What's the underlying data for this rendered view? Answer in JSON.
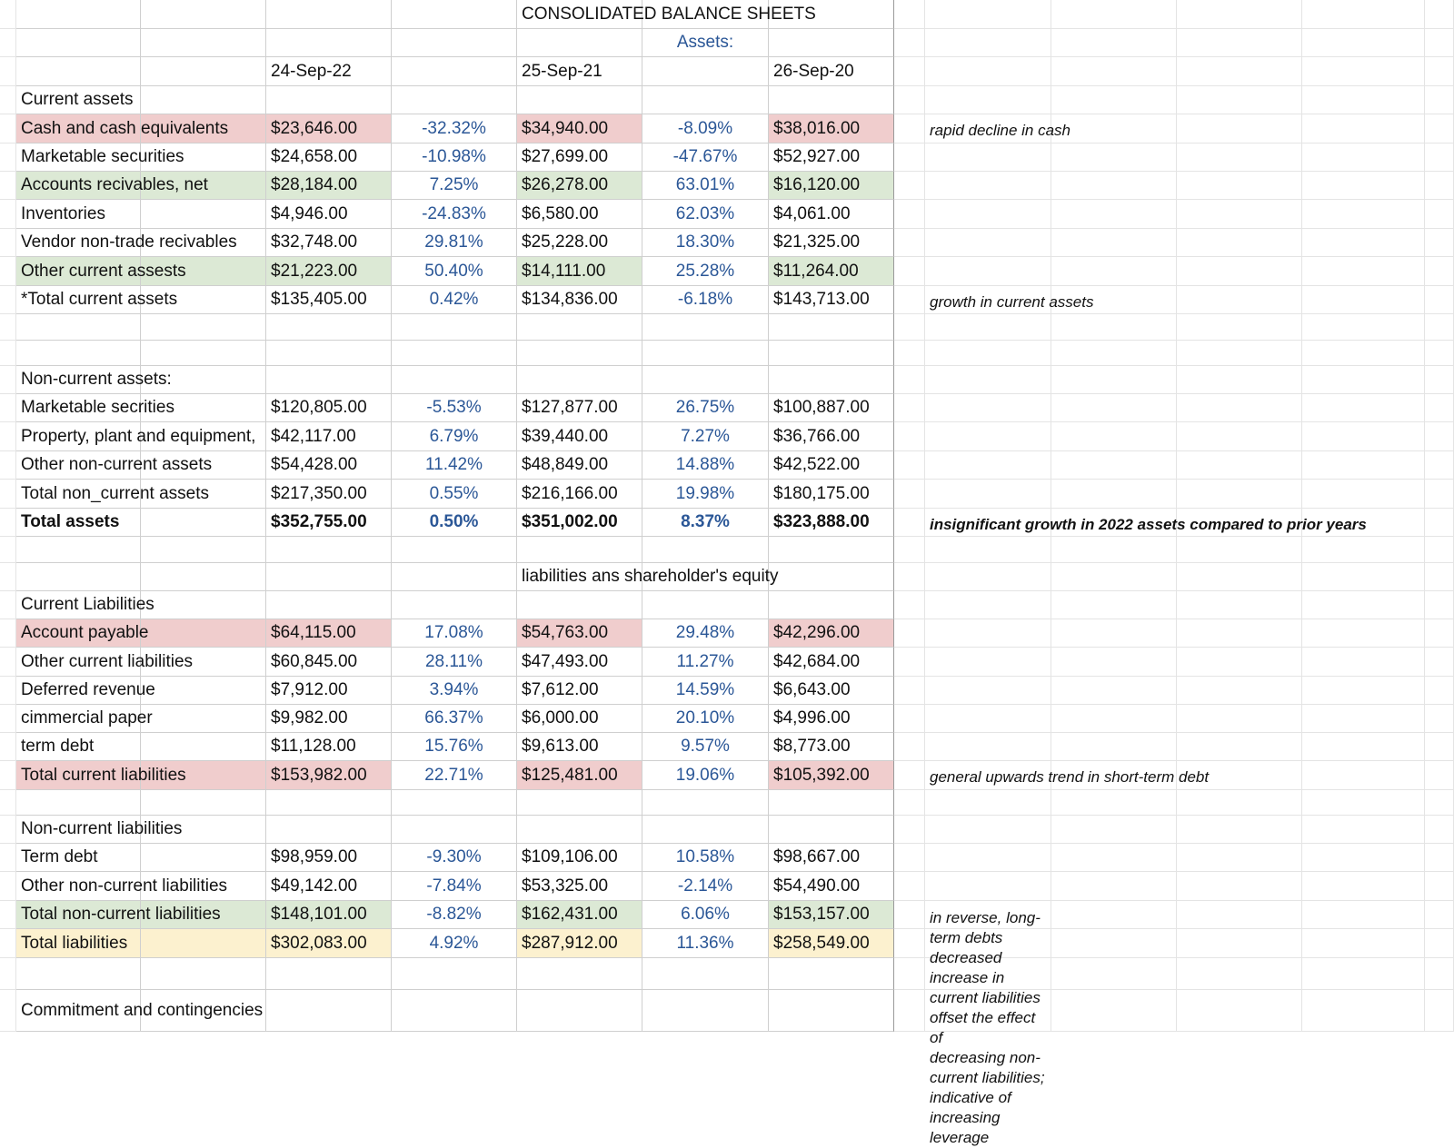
{
  "sheet": {
    "fills": {
      "pink": "#f0cdcd",
      "green": "#dce9d5",
      "yellow": "#fcf1cf",
      "percent_text": "#2b5797"
    },
    "rows": [
      {
        "cells": {
          "E": "CONSOLIDATED BALANCE SHEETS"
        }
      },
      {
        "cells": {
          "F": "Assets:"
        }
      },
      {
        "cells": {
          "C": "24-Sep-22",
          "E": "25-Sep-21",
          "G": "26-Sep-20"
        }
      },
      {
        "cells": {
          "A": "Current assets"
        }
      },
      {
        "cells": {
          "A": "Cash and cash equivalents",
          "C": "$23,646.00",
          "D": "-32.32%",
          "E": "$34,940.00",
          "F": "-8.09%",
          "G": "$38,016.00",
          "I": "rapid decline in cash"
        },
        "fill": "pink"
      },
      {
        "cells": {
          "A": "Marketable securities",
          "C": "$24,658.00",
          "D": "-10.98%",
          "E": "$27,699.00",
          "F": "-47.67%",
          "G": "$52,927.00"
        }
      },
      {
        "cells": {
          "A": "Accounts recivables, net",
          "C": "$28,184.00",
          "D": "7.25%",
          "E": "$26,278.00",
          "F": "63.01%",
          "G": "$16,120.00"
        },
        "fill": "green"
      },
      {
        "cells": {
          "A": "Inventories",
          "C": "$4,946.00",
          "D": "-24.83%",
          "E": "$6,580.00",
          "F": "62.03%",
          "G": "$4,061.00"
        }
      },
      {
        "cells": {
          "A": "Vendor non-trade recivables",
          "C": "$32,748.00",
          "D": "29.81%",
          "E": "$25,228.00",
          "F": "18.30%",
          "G": "$21,325.00"
        }
      },
      {
        "cells": {
          "A": "Other current assests",
          "C": "$21,223.00",
          "D": "50.40%",
          "E": "$14,111.00",
          "F": "25.28%",
          "G": "$11,264.00"
        },
        "fill": "green"
      },
      {
        "cells": {
          "A": "*Total current assets",
          "C": "$135,405.00",
          "D": "0.42%",
          "E": "$134,836.00",
          "F": "-6.18%",
          "G": "$143,713.00",
          "I": "growth in current assets"
        }
      },
      {
        "cells": {}
      },
      {
        "cells": {}
      },
      {
        "cells": {
          "A": "Non-current assets:"
        }
      },
      {
        "cells": {
          "A": "Marketable secrities",
          "C": "$120,805.00",
          "D": "-5.53%",
          "E": "$127,877.00",
          "F": "26.75%",
          "G": "$100,887.00"
        }
      },
      {
        "cells": {
          "A": "Property, plant and equipment,",
          "C": "$42,117.00",
          "D": "6.79%",
          "E": "$39,440.00",
          "F": "7.27%",
          "G": "$36,766.00"
        }
      },
      {
        "cells": {
          "A": "Other non-current assets",
          "C": "$54,428.00",
          "D": "11.42%",
          "E": "$48,849.00",
          "F": "14.88%",
          "G": "$42,522.00"
        }
      },
      {
        "cells": {
          "A": "Total non_current assets",
          "C": "$217,350.00",
          "D": "0.55%",
          "E": "$216,166.00",
          "F": "19.98%",
          "G": "$180,175.00"
        }
      },
      {
        "cells": {
          "A": "Total assets",
          "C": "$352,755.00",
          "D": "0.50%",
          "E": "$351,002.00",
          "F": "8.37%",
          "G": "$323,888.00",
          "I": "insignificant growth in 2022 assets compared to prior years"
        },
        "bold": true
      },
      {
        "cells": {}
      },
      {
        "cells": {
          "E": "liabilities ans shareholder's equity"
        }
      },
      {
        "cells": {
          "A": "Current Liabilities"
        }
      },
      {
        "cells": {
          "A": "Account payable",
          "C": "$64,115.00",
          "D": "17.08%",
          "E": "$54,763.00",
          "F": "29.48%",
          "G": "$42,296.00"
        },
        "fill": "pink"
      },
      {
        "cells": {
          "A": "Other current liabilities",
          "C": "$60,845.00",
          "D": "28.11%",
          "E": "$47,493.00",
          "F": "11.27%",
          "G": "$42,684.00"
        }
      },
      {
        "cells": {
          "A": "Deferred revenue",
          "C": "$7,912.00",
          "D": "3.94%",
          "E": "$7,612.00",
          "F": "14.59%",
          "G": "$6,643.00"
        }
      },
      {
        "cells": {
          "A": "cimmercial paper",
          "C": "$9,982.00",
          "D": "66.37%",
          "E": "$6,000.00",
          "F": "20.10%",
          "G": "$4,996.00"
        }
      },
      {
        "cells": {
          "A": "term debt",
          "C": "$11,128.00",
          "D": "15.76%",
          "E": "$9,613.00",
          "F": "9.57%",
          "G": "$8,773.00"
        }
      },
      {
        "cells": {
          "A": "Total current liabilities",
          "C": "$153,982.00",
          "D": "22.71%",
          "E": "$125,481.00",
          "F": "19.06%",
          "G": "$105,392.00",
          "I": "general upwards trend in short-term debt"
        },
        "fill": "pink"
      },
      {
        "cells": {}
      },
      {
        "cells": {
          "A": "Non-current liabilities"
        }
      },
      {
        "cells": {
          "A": "Term debt",
          "C": "$98,959.00",
          "D": "-9.30%",
          "E": "$109,106.00",
          "F": "10.58%",
          "G": "$98,667.00"
        }
      },
      {
        "cells": {
          "A": "Other non-current liabilities",
          "C": "$49,142.00",
          "D": "-7.84%",
          "E": "$53,325.00",
          "F": "-2.14%",
          "G": "$54,490.00"
        }
      },
      {
        "cells": {
          "A": "Total non-current liabilities",
          "C": "$148,101.00",
          "D": "-8.82%",
          "E": "$162,431.00",
          "F": "6.06%",
          "G": "$153,157.00",
          "I": "in reverse, long-term debts decreased\nincrease in current liabilities offset the effect of\ndecreasing non-current liabilities; indicative of\nincreasing leverage"
        },
        "fill": "green"
      },
      {
        "cells": {
          "A": "Total liabilities",
          "C": "$302,083.00",
          "D": "4.92%",
          "E": "$287,912.00",
          "F": "11.36%",
          "G": "$258,549.00"
        },
        "fill": "yellow"
      },
      {
        "cells": {}
      },
      {
        "cells": {
          "A": "Commitment and contingencies"
        }
      }
    ]
  }
}
